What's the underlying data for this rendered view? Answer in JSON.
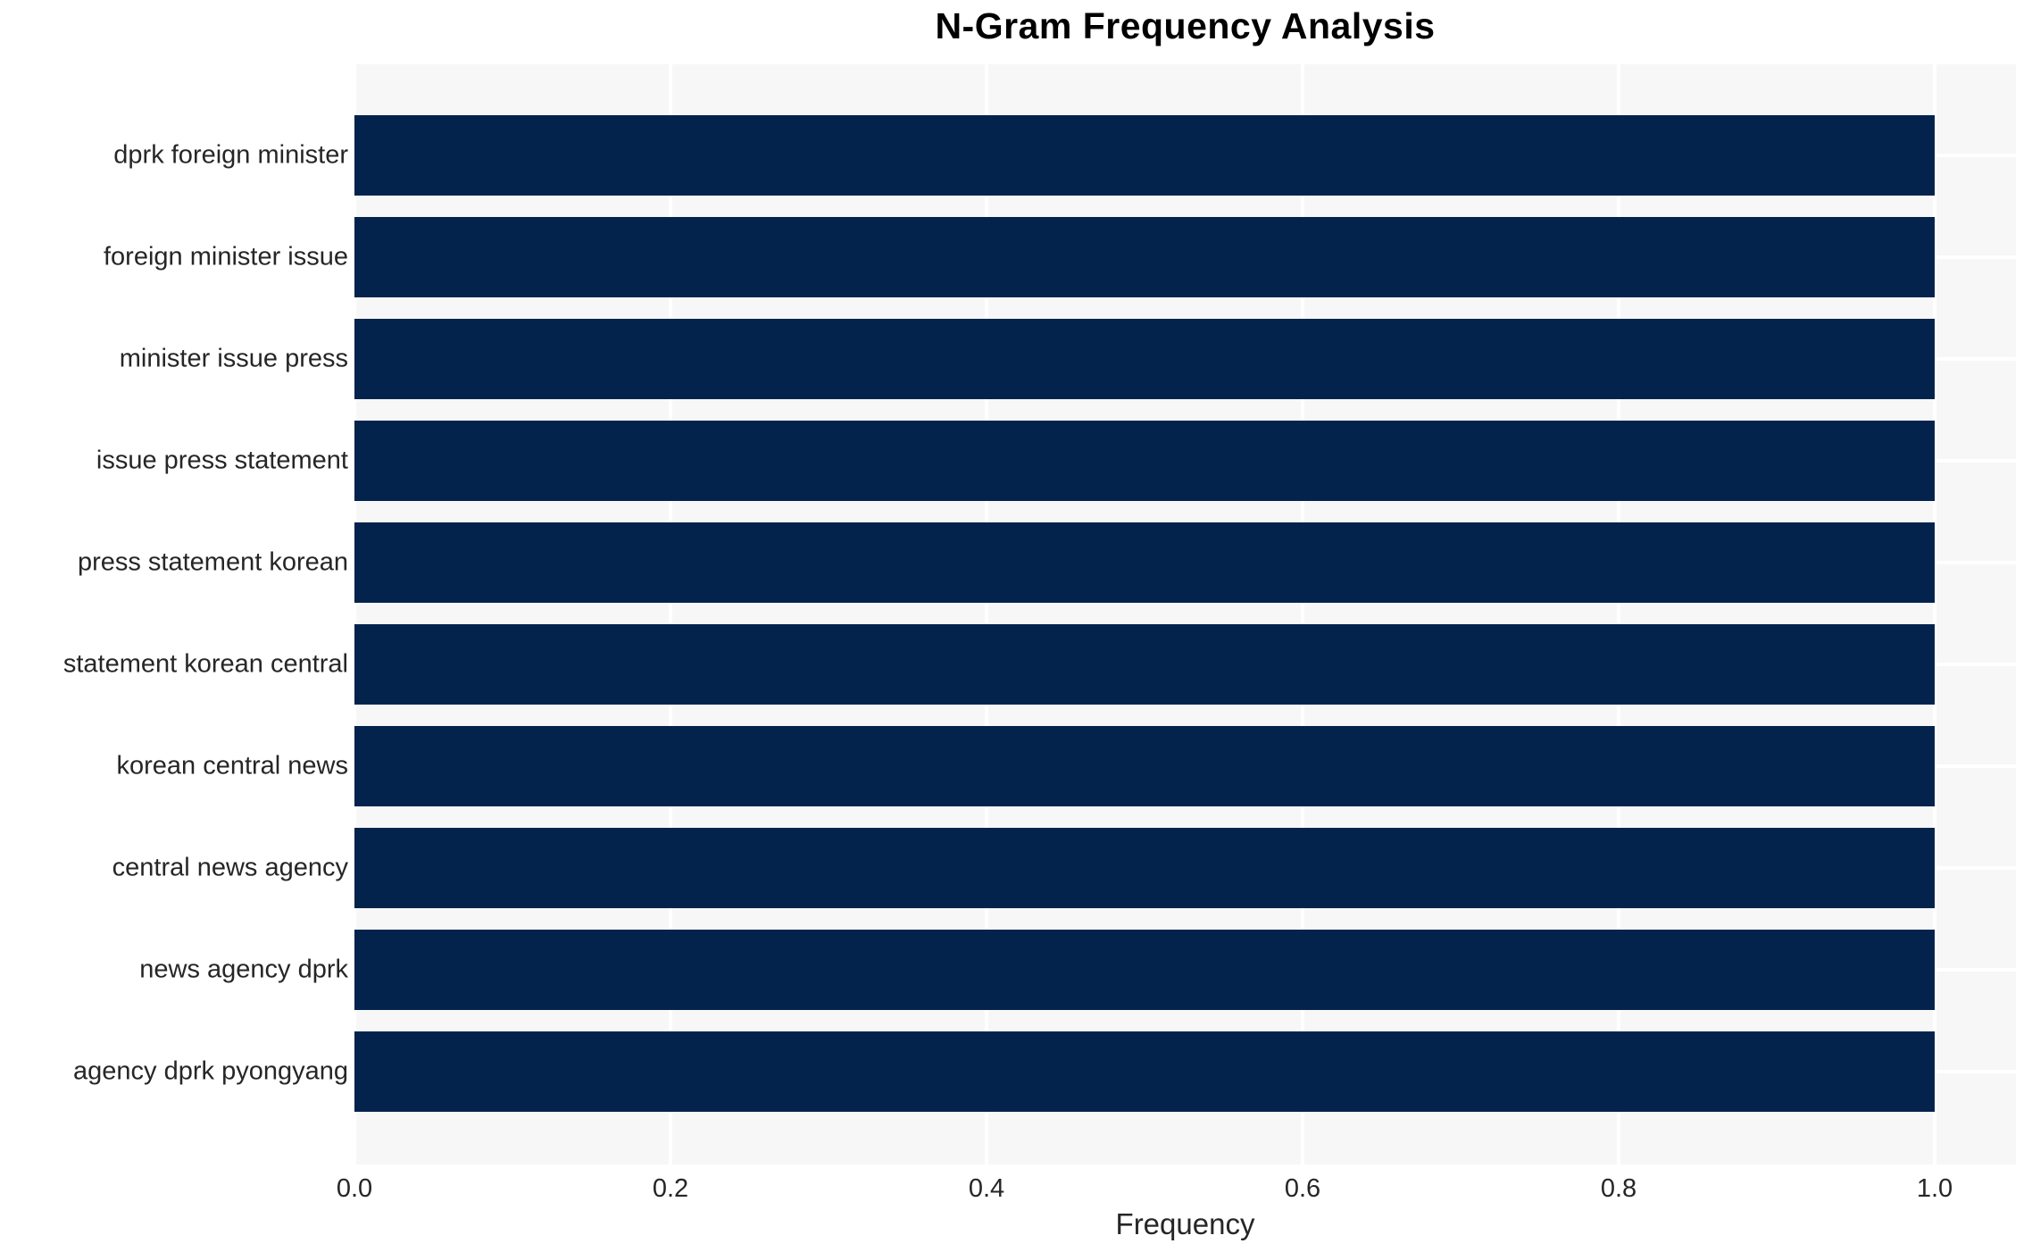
{
  "chart_data": {
    "type": "bar",
    "orientation": "horizontal",
    "title": "N-Gram Frequency Analysis",
    "xlabel": "Frequency",
    "ylabel": "",
    "categories": [
      "dprk foreign minister",
      "foreign minister issue",
      "minister issue press",
      "issue press statement",
      "press statement korean",
      "statement korean central",
      "korean central news",
      "central news agency",
      "news agency dprk",
      "agency dprk pyongyang"
    ],
    "values": [
      1.0,
      1.0,
      1.0,
      1.0,
      1.0,
      1.0,
      1.0,
      1.0,
      1.0,
      1.0
    ],
    "x_ticks": [
      "0.0",
      "0.2",
      "0.4",
      "0.6",
      "0.8",
      "1.0"
    ],
    "x_tick_values": [
      0.0,
      0.2,
      0.4,
      0.6,
      0.8,
      1.0
    ],
    "xlim": [
      0,
      1.0514
    ],
    "grid": true,
    "legend": false,
    "colors": {
      "bar": "#03234d",
      "plot_background": "#f7f7f7",
      "gridline": "#ffffff",
      "tick_text": "#262626",
      "title_text": "#000000"
    }
  }
}
